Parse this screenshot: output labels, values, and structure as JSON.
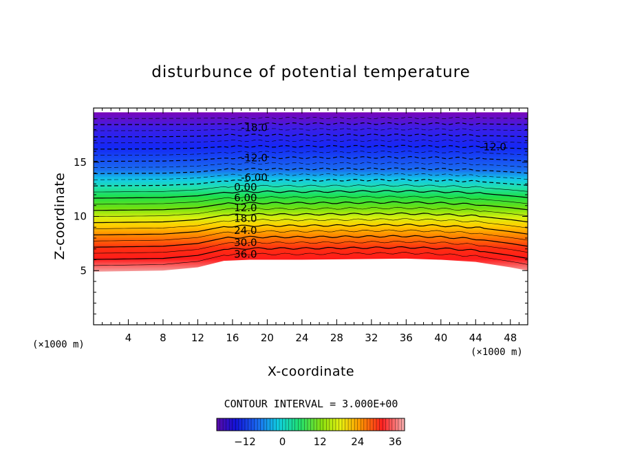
{
  "chart_data": {
    "type": "contour",
    "title": "disturbunce of potential temperature",
    "xlabel": "X-coordinate",
    "ylabel": "Z-coordinate",
    "x_unit_left": "(×1000 m)",
    "x_unit_right": "(×1000 m)",
    "xlim": [
      0,
      50
    ],
    "ylim": [
      0,
      20
    ],
    "x_ticks": [
      4,
      8,
      12,
      16,
      20,
      24,
      28,
      32,
      36,
      40,
      44,
      48
    ],
    "y_ticks": [
      5,
      10,
      15
    ],
    "contour_interval_text": "CONTOUR INTERVAL = 3.000E+00",
    "contour_interval": 3.0,
    "colorbar": {
      "ticks": [
        -12,
        0,
        12,
        24,
        36
      ],
      "tick_labels": [
        "−12",
        "0",
        "12",
        "24",
        "36"
      ],
      "range": [
        -21,
        39
      ],
      "colormap": "rainbow (purple → blue → cyan → green → yellow → orange → red → pink)"
    },
    "contour_labels": [
      {
        "text": "-18.0",
        "value": -18.0,
        "x": 18.5,
        "z": 18.2
      },
      {
        "text": "-12.0",
        "value": -12.0,
        "x": 18.5,
        "z": 15.4
      },
      {
        "text": "-12.0",
        "value": -12.0,
        "x": 46.0,
        "z": 16.4
      },
      {
        "text": "-6.00",
        "value": -6.0,
        "x": 18.5,
        "z": 13.6
      },
      {
        "text": "0.00",
        "value": 0.0,
        "x": 17.5,
        "z": 12.7
      },
      {
        "text": "6.00",
        "value": 6.0,
        "x": 17.5,
        "z": 11.7
      },
      {
        "text": "12.0",
        "value": 12.0,
        "x": 17.5,
        "z": 10.8
      },
      {
        "text": "18.0",
        "value": 18.0,
        "x": 17.5,
        "z": 9.8
      },
      {
        "text": "24.0",
        "value": 24.0,
        "x": 17.5,
        "z": 8.7
      },
      {
        "text": "30.0",
        "value": 30.0,
        "x": 17.5,
        "z": 7.6
      },
      {
        "text": "36.0",
        "value": 36.0,
        "x": 17.5,
        "z": 6.5
      }
    ],
    "field_top_boundary_z": 19.6,
    "field_bottom_boundary": [
      {
        "x": 0,
        "z": 4.9
      },
      {
        "x": 8,
        "z": 5.0
      },
      {
        "x": 12,
        "z": 5.3
      },
      {
        "x": 15,
        "z": 5.9
      },
      {
        "x": 18,
        "z": 6.0
      },
      {
        "x": 24,
        "z": 6.0
      },
      {
        "x": 36,
        "z": 6.1
      },
      {
        "x": 40,
        "z": 6.0
      },
      {
        "x": 44,
        "z": 5.8
      },
      {
        "x": 48,
        "z": 5.3
      },
      {
        "x": 50,
        "z": 5.0
      }
    ]
  }
}
